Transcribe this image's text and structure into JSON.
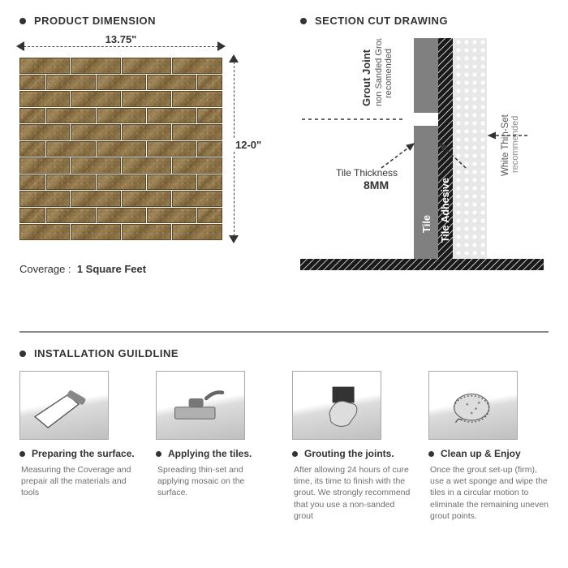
{
  "headings": {
    "product_dimension": "PRODUCT DIMENSION",
    "section_cut": "SECTION CUT DRAWING",
    "installation": "INSTALLATION GUILDLINE"
  },
  "product_dimension": {
    "width_label": "13.75\"",
    "height_label": "12-0\"",
    "coverage_key": "Coverage :",
    "coverage_value": "1 Square Feet",
    "tile_color_a": "#8f7347",
    "tile_color_b": "#7a6138",
    "rows": 11
  },
  "section_cut": {
    "colors": {
      "tile": "#808080",
      "adhesive": "#1a1a1a",
      "thinset": "#c0c0c0",
      "wall": "#e8e8e8",
      "line": "#333333"
    },
    "labels": {
      "grout_joint_main": "Grout Joint",
      "grout_joint_sub1": "non Sanded Grout",
      "grout_joint_sub2": "recomended",
      "tile_thickness": "Tile Thickness",
      "tile_thickness_val": "8MM",
      "tile": "Tile",
      "adhesive": "Tile Adhesive",
      "thinset_main": "White Thin-Set",
      "thinset_sub": "recommended"
    }
  },
  "steps": [
    {
      "title": "Preparing the surface.",
      "desc": "Measuring the Coverage and prepair all the materials and tools"
    },
    {
      "title": "Applying the tiles.",
      "desc": "Spreading thin-set and applying mosaic on the surface."
    },
    {
      "title": "Grouting the joints.",
      "desc": "After allowing 24 hours of cure time, its time to finish with the grout. We strongly recommend that you use a non-sanded grout"
    },
    {
      "title": "Clean up & Enjoy",
      "desc": "Once the grout set-up (firm), use a wet sponge and wipe the tiles in a circular motion to eliminate the remaining uneven grout points."
    }
  ]
}
